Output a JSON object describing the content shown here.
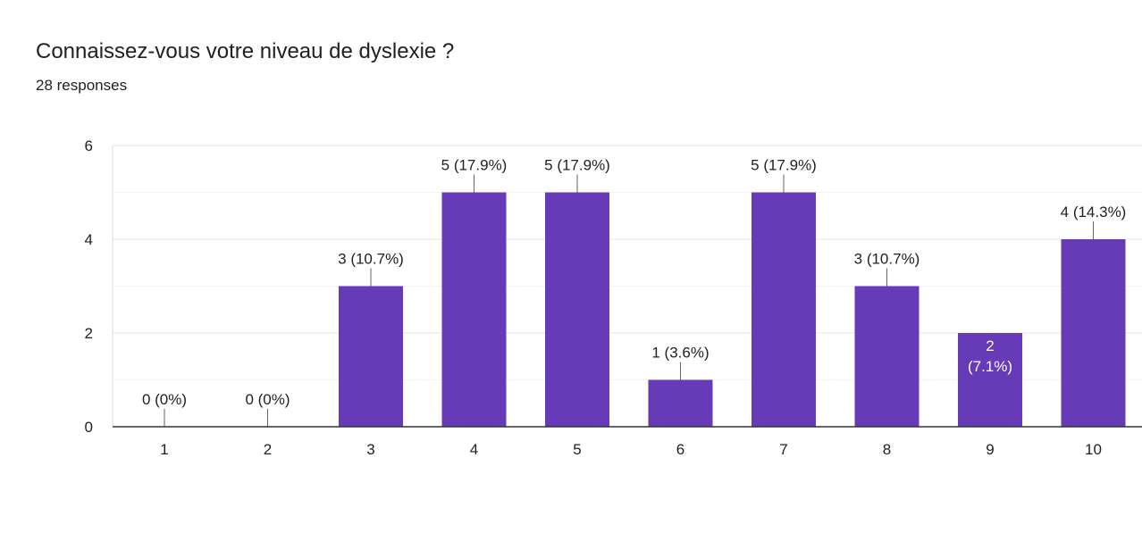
{
  "question": {
    "title": "Connaissez-vous votre niveau de dyslexie ?",
    "responses": "28 responses"
  },
  "colors": {
    "bar": "#673ab7",
    "grid": "#e8e8e8",
    "axis": "#333333",
    "text": "#202124",
    "leader": "#666666"
  },
  "chart_data": {
    "type": "bar",
    "title": "Connaissez-vous votre niveau de dyslexie ?",
    "subtitle": "28 responses",
    "categories": [
      "1",
      "2",
      "3",
      "4",
      "5",
      "6",
      "7",
      "8",
      "9",
      "10"
    ],
    "values": [
      0,
      0,
      3,
      5,
      5,
      1,
      5,
      3,
      2,
      4
    ],
    "labels": [
      "0 (0%)",
      "0 (0%)",
      "3 (10.7%)",
      "5 (17.9%)",
      "5 (17.9%)",
      "1 (3.6%)",
      "5 (17.9%)",
      "3 (10.7%)",
      "2 (7.1%)",
      "4 (14.3%)"
    ],
    "ylim": [
      0,
      6
    ],
    "yticks": [
      0,
      2,
      4,
      6
    ],
    "xlabel": "",
    "ylabel": "",
    "grid": true
  }
}
